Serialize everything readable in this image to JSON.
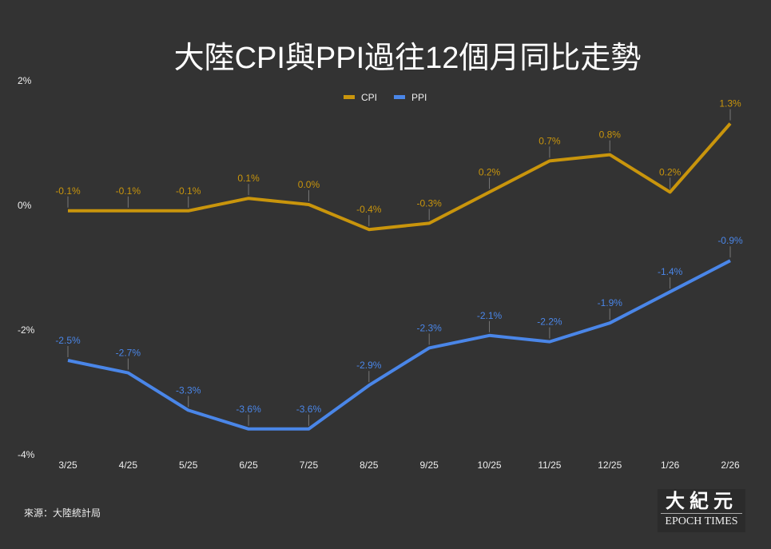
{
  "chart_data": {
    "type": "line",
    "title": "大陸CPI與PPI過往12個月同比走勢",
    "categories": [
      "3/25",
      "4/25",
      "5/25",
      "6/25",
      "7/25",
      "8/25",
      "9/25",
      "10/25",
      "11/25",
      "12/25",
      "1/26",
      "2/26"
    ],
    "series": [
      {
        "name": "CPI",
        "color": "#c9950c",
        "values": [
          -0.1,
          -0.1,
          -0.1,
          0.1,
          0.0,
          -0.4,
          -0.3,
          0.2,
          0.7,
          0.8,
          0.2,
          1.3
        ],
        "labels": [
          "-0.1%",
          "-0.1%",
          "-0.1%",
          "0.1%",
          "0.0%",
          "-0.4%",
          "-0.3%",
          "0.2%",
          "0.7%",
          "0.8%",
          "0.2%",
          "1.3%"
        ]
      },
      {
        "name": "PPI",
        "color": "#4a86e8",
        "values": [
          -2.5,
          -2.7,
          -3.3,
          -3.6,
          -3.6,
          -2.9,
          -2.3,
          -2.1,
          -2.2,
          -1.9,
          -1.4,
          -0.9
        ],
        "labels": [
          "-2.5%",
          "-2.7%",
          "-3.3%",
          "-3.6%",
          "-3.6%",
          "-2.9%",
          "-2.3%",
          "-2.1%",
          "-2.2%",
          "-1.9%",
          "-1.4%",
          "-0.9%"
        ]
      }
    ],
    "yticks": [
      2,
      0,
      -2,
      -4
    ],
    "ytick_labels": [
      "2%",
      "0%",
      "-2%",
      "-4%"
    ],
    "ylim": [
      -4,
      2
    ],
    "legend": "top-center",
    "grid": false
  },
  "source": "來源：大陸統計局",
  "logo": {
    "cn": "大紀元",
    "en": "EPOCH TIMES"
  }
}
